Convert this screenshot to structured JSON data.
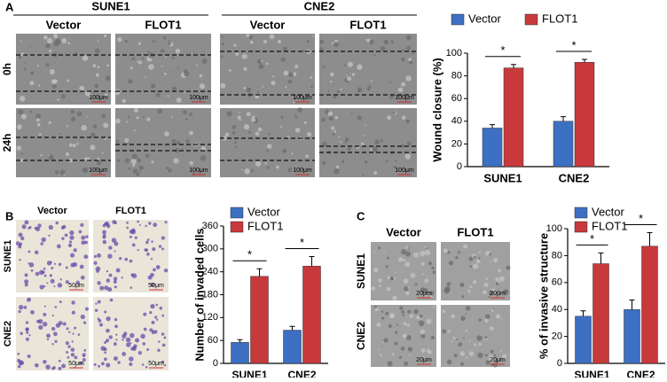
{
  "panel_a": {
    "label": "A",
    "groups": [
      "SUNE1",
      "CNE2"
    ],
    "conditions": [
      "Vector",
      "FLOT1"
    ],
    "rows": [
      "0h",
      "24h"
    ],
    "scale": "100μm"
  },
  "panel_b": {
    "label": "B",
    "conditions": [
      "Vector",
      "FLOT1"
    ],
    "rows": [
      "SUNE1",
      "CNE2"
    ],
    "scale": "50μm"
  },
  "panel_c": {
    "label": "C",
    "conditions": [
      "Vector",
      "FLOT1"
    ],
    "rows": [
      "SUNE1",
      "CNE2"
    ],
    "scale": "20μm"
  },
  "chart_data": [
    {
      "type": "bar",
      "ylabel": "Wound closure (%)",
      "categories": [
        "SUNE1",
        "CNE2"
      ],
      "series": [
        {
          "name": "Vector",
          "color": "#3d6fc2",
          "values": [
            34,
            40
          ],
          "errors": [
            3,
            4
          ]
        },
        {
          "name": "FLOT1",
          "color": "#c8393c",
          "values": [
            87,
            92
          ],
          "errors": [
            3,
            2.5
          ]
        }
      ],
      "ylim": [
        0,
        100
      ],
      "yticks": [
        0,
        20,
        40,
        60,
        80,
        100
      ],
      "annotations": [
        "*",
        "*"
      ]
    },
    {
      "type": "bar",
      "ylabel": "Number of invaded cells",
      "categories": [
        "SUNE1",
        "CNE2"
      ],
      "series": [
        {
          "name": "Vector",
          "color": "#3d6fc2",
          "values": [
            55,
            87
          ],
          "errors": [
            7,
            10
          ]
        },
        {
          "name": "FLOT1",
          "color": "#c8393c",
          "values": [
            228,
            255
          ],
          "errors": [
            20,
            25
          ]
        }
      ],
      "ylim": [
        0,
        360
      ],
      "yticks": [
        0,
        60,
        120,
        180,
        240,
        300,
        360
      ],
      "annotations": [
        "*",
        "*"
      ]
    },
    {
      "type": "bar",
      "ylabel": "% of invasive structure",
      "categories": [
        "SUNE1",
        "CNE2"
      ],
      "series": [
        {
          "name": "Vector",
          "color": "#3d6fc2",
          "values": [
            35,
            40
          ],
          "errors": [
            4,
            7
          ]
        },
        {
          "name": "FLOT1",
          "color": "#c8393c",
          "values": [
            74,
            87
          ],
          "errors": [
            8,
            10
          ]
        }
      ],
      "ylim": [
        0,
        100
      ],
      "yticks": [
        0,
        20,
        40,
        60,
        80,
        100
      ],
      "annotations": [
        "*",
        "*"
      ]
    }
  ]
}
